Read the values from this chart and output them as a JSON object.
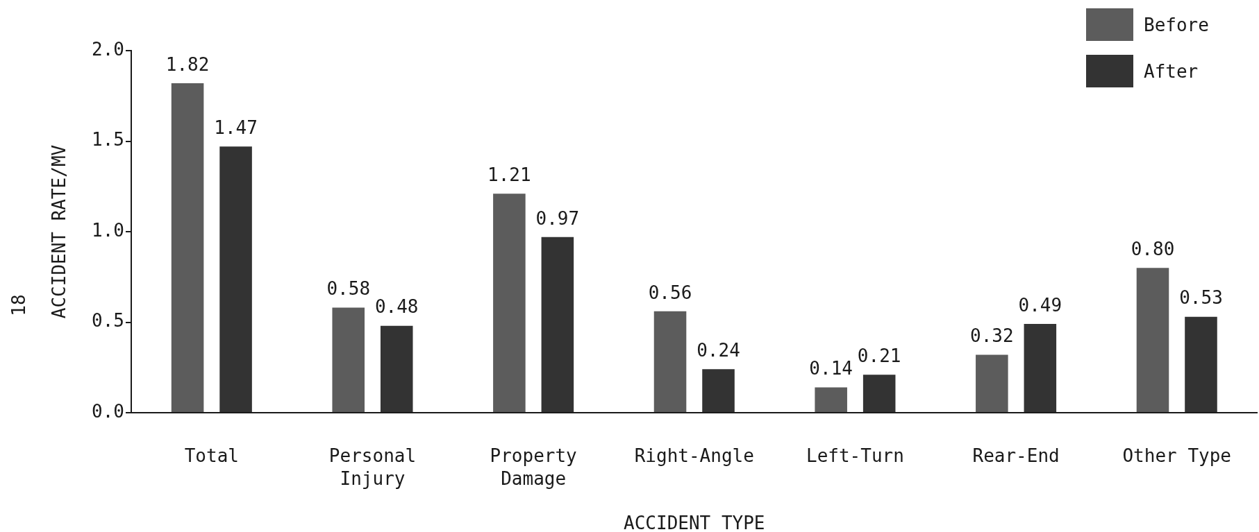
{
  "chart_data": {
    "type": "bar",
    "xlabel": "ACCIDENT TYPE",
    "ylabel": "ACCIDENT RATE/MV",
    "categories": [
      "Total",
      "Personal Injury",
      "Property Damage",
      "Right-Angle",
      "Left-Turn",
      "Rear-End",
      "Other Type"
    ],
    "series": [
      {
        "name": "Before",
        "color": "#5c5c5c",
        "values": [
          1.82,
          0.58,
          1.21,
          0.56,
          0.14,
          0.32,
          0.8
        ],
        "value_labels": [
          "1.82",
          "0.58",
          "1.21",
          "0.56",
          "0.14",
          "0.32",
          "0.80"
        ]
      },
      {
        "name": "After",
        "color": "#333333",
        "values": [
          1.47,
          0.48,
          0.97,
          0.24,
          0.21,
          0.49,
          0.53
        ],
        "value_labels": [
          "1.47",
          "0.48",
          "0.97",
          "0.24",
          "0.21",
          "0.49",
          "0.53"
        ]
      }
    ],
    "ylim": [
      0,
      2
    ],
    "yticks": [
      {
        "value": 0,
        "label": "0.0"
      },
      0.5,
      {
        "value": 1,
        "label": "1.0"
      },
      1.5,
      {
        "value": 2,
        "label": "2.0"
      }
    ],
    "legend": "top right",
    "annotations": [
      "18"
    ]
  }
}
